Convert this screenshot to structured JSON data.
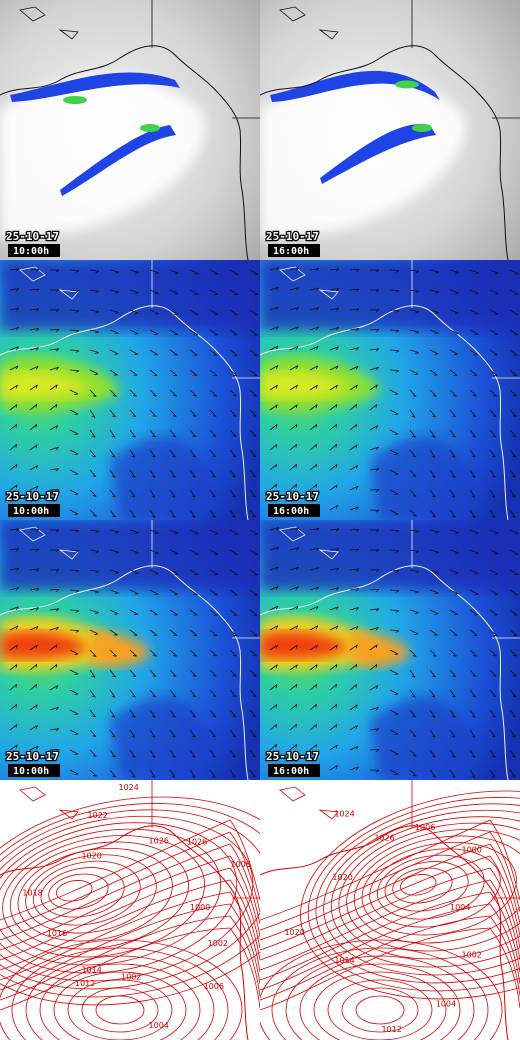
{
  "panels": [
    {
      "date": "25-10-17",
      "time": "10:00h"
    },
    {
      "date": "25-10-17",
      "time": "16:00h"
    },
    {
      "date": "25-10-17",
      "time": "10:00h"
    },
    {
      "date": "25-10-17",
      "time": "16:00h"
    },
    {
      "date": "25-10-17",
      "time": "10:00h"
    },
    {
      "date": "25-10-17",
      "time": "16:00h"
    }
  ],
  "pressure_maps": [
    {
      "labels": [
        "1000",
        "1002",
        "1006",
        "1004",
        "1002",
        "1012",
        "1014",
        "1016",
        "1018",
        "1020",
        "1022",
        "1024",
        "1026",
        "1026",
        "1006"
      ]
    },
    {
      "labels": [
        "1004",
        "1002",
        "1004",
        "1012",
        "1014",
        "1020",
        "1020",
        "1024",
        "1026",
        "1006",
        "1000"
      ]
    }
  ]
}
